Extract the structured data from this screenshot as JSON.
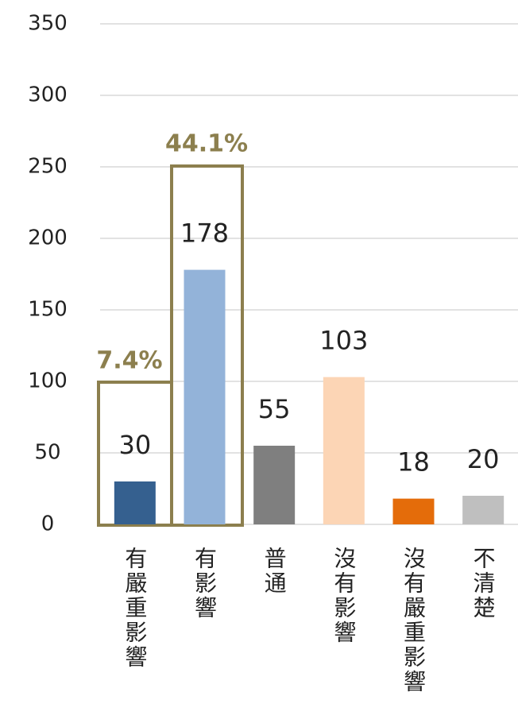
{
  "chart_data": {
    "type": "bar",
    "categories": [
      "有嚴重影響",
      "有影響",
      "普通",
      "沒有影響",
      "沒有嚴重影響",
      "不清楚"
    ],
    "values": [
      30,
      178,
      55,
      103,
      18,
      20
    ],
    "colors": [
      "#35608f",
      "#93b3d9",
      "#7f7f7f",
      "#fcd5b5",
      "#e46c0a",
      "#bfbfbf"
    ],
    "ylim": [
      0,
      350
    ],
    "yticks": [
      0,
      50,
      100,
      150,
      200,
      250,
      300,
      350
    ],
    "grid": true,
    "annotations": [
      "7.4%",
      "44.1%"
    ]
  }
}
